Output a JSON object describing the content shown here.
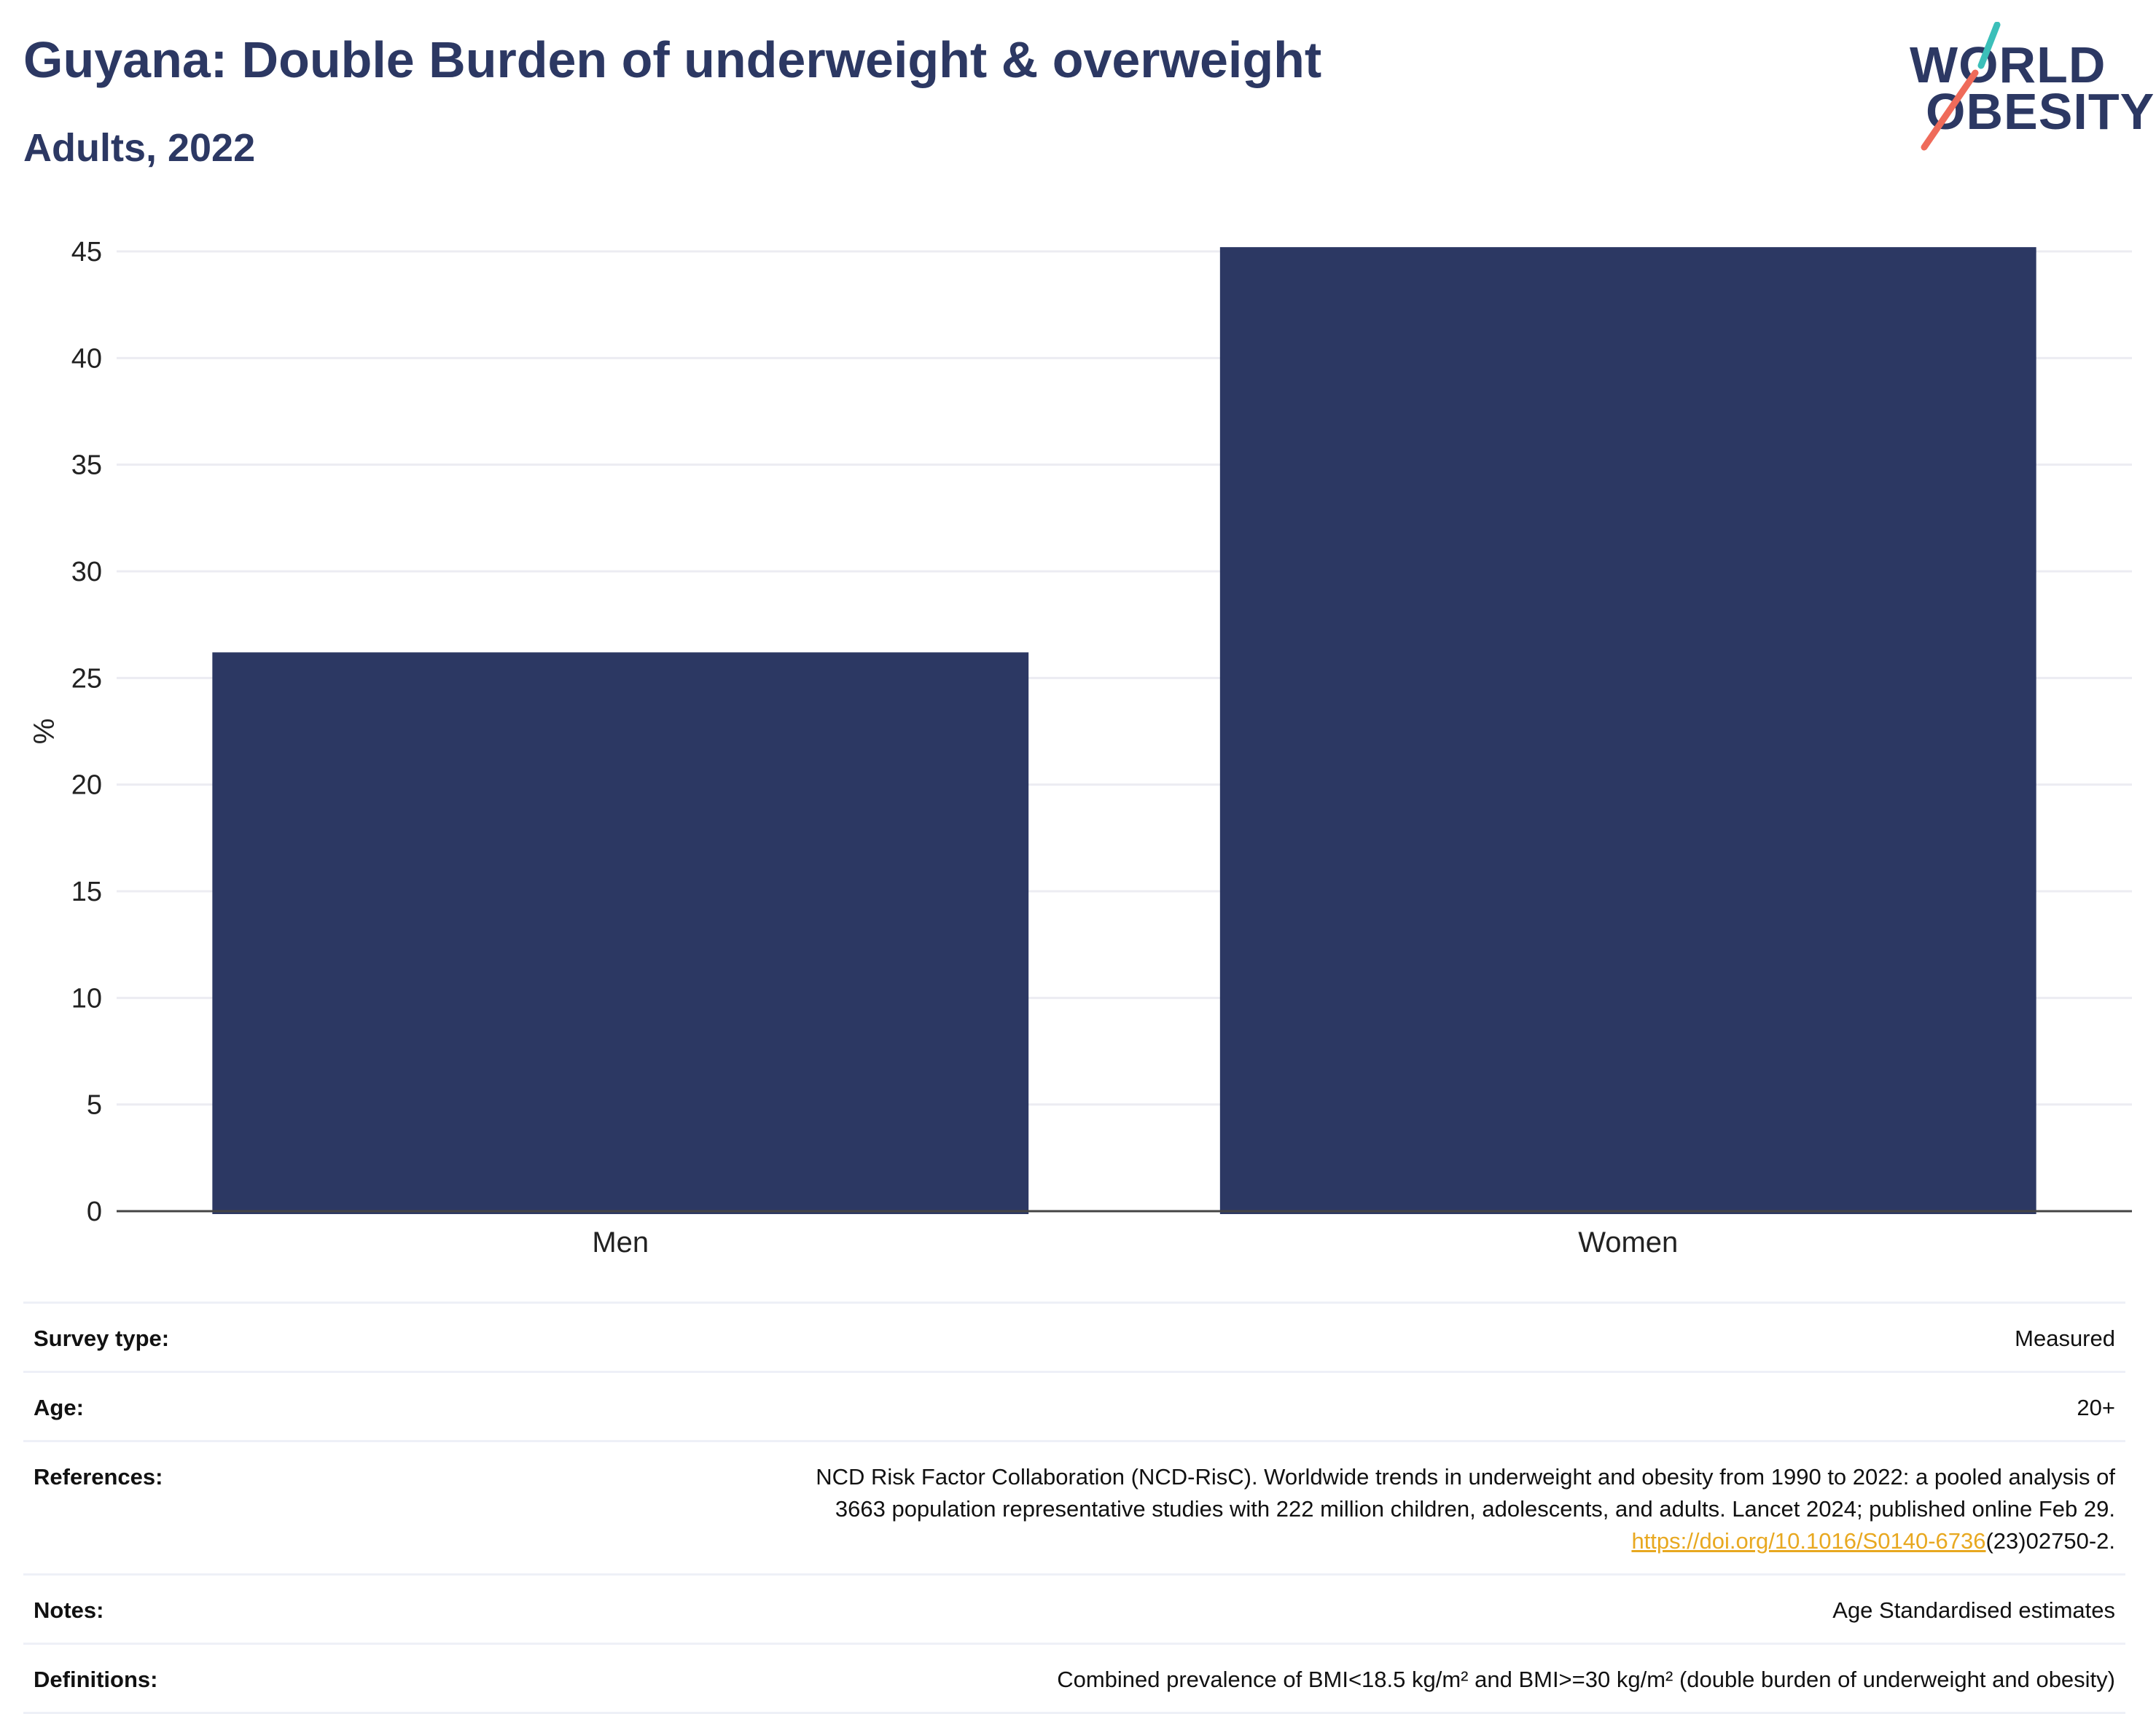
{
  "header": {
    "title": "Guyana: Double Burden of underweight & overweight",
    "subtitle": "Adults, 2022"
  },
  "logo": {
    "line1": "WORLD",
    "line2": "OBESITY",
    "colors": {
      "text": "#2c3863",
      "teal": "#3bbfb9",
      "coral": "#ef6b5a"
    }
  },
  "chart_data": {
    "type": "bar",
    "categories": [
      "Men",
      "Women"
    ],
    "values": [
      26.2,
      45.2
    ],
    "title": "",
    "xlabel": "",
    "ylabel": "%",
    "ylim": [
      0,
      45
    ],
    "yticks": [
      0,
      5,
      10,
      15,
      20,
      25,
      30,
      35,
      40,
      45
    ],
    "grid": true,
    "bar_color": "#2c3863"
  },
  "meta": {
    "survey_type": {
      "key": "Survey type:",
      "value": "Measured"
    },
    "age": {
      "key": "Age:",
      "value": "20+"
    },
    "references": {
      "key": "References:",
      "line1": "NCD Risk Factor Collaboration (NCD-RisC). Worldwide trends in underweight and obesity from 1990 to 2022: a pooled analysis of",
      "line2": "3663 population representative studies with 222 million children, adolescents, and adults. Lancet 2024; published online Feb 29.",
      "link": "https://doi.org/10.1016/S0140-6736",
      "link_suffix": "(23)02750-2."
    },
    "notes": {
      "key": "Notes:",
      "value": "Age Standardised estimates"
    },
    "definitions": {
      "key": "Definitions:",
      "value": "Combined prevalence of BMI<18.5 kg/m² and BMI>=30 kg/m² (double burden of underweight and obesity)"
    }
  }
}
